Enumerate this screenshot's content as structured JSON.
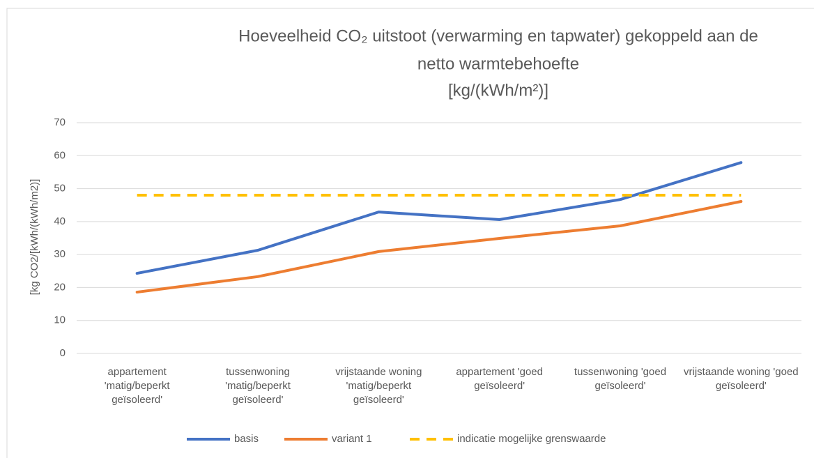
{
  "chart_data": {
    "type": "line",
    "title": [
      "Hoeveelheid CO₂ uitstoot (verwarming en tapwater) gekoppeld aan de",
      "netto warmtebehoefte",
      "[kg/(kWh/m²)]"
    ],
    "y_label": "[kg CO2/[kWh/(kWh/m2)]",
    "categories": [
      "appartement 'matig/beperkt geïsoleerd'",
      "tussenwoning 'matig/beperkt geïsoleerd'",
      "vrijstaande woning 'matig/beperkt geïsoleerd'",
      "appartement 'goed geïsoleerd'",
      "tussenwoning 'goed geïsoleerd'",
      "vrijstaande woning 'goed geïsoleerd'"
    ],
    "series": [
      {
        "name": "basis",
        "color": "#4472c4",
        "values": [
          24.3,
          31.3,
          42.9,
          40.6,
          46.7,
          57.9
        ]
      },
      {
        "name": "variant 1",
        "color": "#ed7d31",
        "values": [
          18.6,
          23.3,
          30.9,
          34.9,
          38.7,
          46.1
        ]
      },
      {
        "name": "indicatie mogelijke grenswaarde",
        "color": "#ffc000",
        "dashed": true,
        "values": [
          48,
          48,
          48,
          48,
          48,
          48
        ]
      }
    ],
    "ylim": [
      0,
      70
    ],
    "yticks": [
      0,
      10,
      20,
      30,
      40,
      50,
      60,
      70
    ],
    "grid": true,
    "legend": "bottom"
  }
}
